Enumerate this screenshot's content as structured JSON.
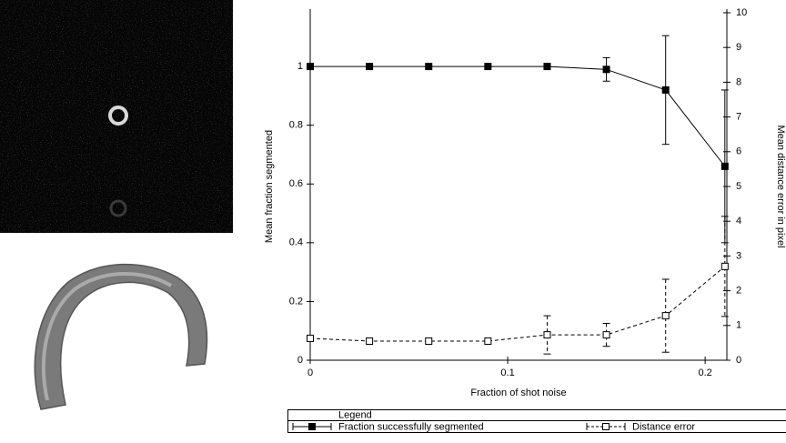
{
  "chart_data": {
    "type": "line",
    "x_label": "Fraction of shot noise",
    "y_label": "Mean fraction segmented",
    "y2_label": "Mean distance error in pixel",
    "x": [
      0,
      0.03,
      0.06,
      0.09,
      0.12,
      0.15,
      0.18,
      0.21
    ],
    "xlim": [
      0,
      0.211
    ],
    "xticks": [
      0,
      0.1,
      0.2
    ],
    "ylim": [
      0,
      1.183
    ],
    "yticks": [
      0,
      0.2,
      0.4,
      0.6,
      0.8,
      1
    ],
    "y2lim": [
      0,
      10
    ],
    "y2ticks": [
      0,
      1,
      2,
      3,
      4,
      5,
      6,
      7,
      8,
      9,
      10
    ],
    "legend_title": "Legend",
    "series": [
      {
        "name": "Fraction successfully segmented",
        "color": "#000000",
        "line_style": "solid",
        "marker": "filled-square",
        "values": [
          1,
          1,
          1,
          1,
          1,
          0.99,
          0.92,
          0.66
        ],
        "errors": [
          0,
          0,
          0,
          0,
          0,
          0.04,
          0.185,
          0.26
        ]
      },
      {
        "name": "Distance error",
        "color": "#000000",
        "line_style": "dashed",
        "marker": "open-square",
        "axis": "y2",
        "values": [
          0.63,
          0.55,
          0.55,
          0.55,
          0.73,
          0.73,
          1.28,
          2.7
        ],
        "errors": [
          0,
          0,
          0,
          0,
          0.55,
          0.33,
          1.05,
          1.44
        ]
      }
    ]
  }
}
